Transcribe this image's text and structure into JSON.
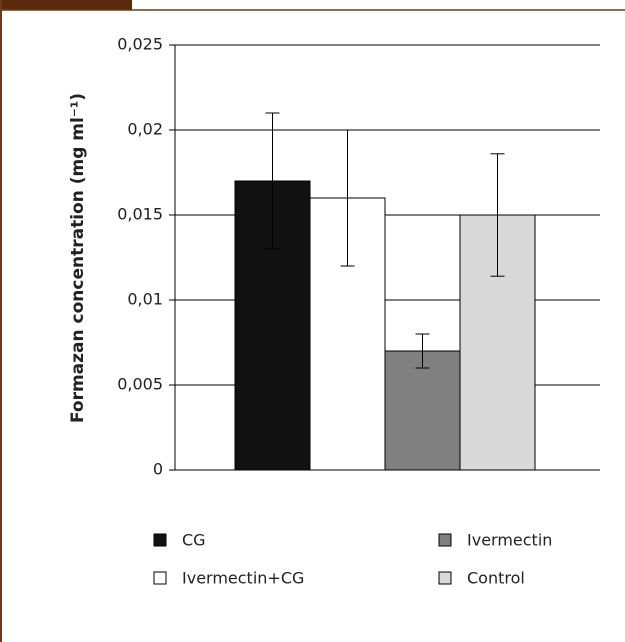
{
  "chart_data": {
    "type": "bar",
    "y_label": "Formazan concentration (mg ml⁻¹)",
    "series": [
      {
        "name": "CG",
        "color": "#111111",
        "values": [
          0.017
        ],
        "errors": [
          0.004
        ]
      },
      {
        "name": "Ivermectin+CG",
        "color": "#ffffff",
        "values": [
          0.016
        ],
        "errors": [
          0.004
        ]
      },
      {
        "name": "Ivermectin",
        "color": "#808080",
        "values": [
          0.007
        ],
        "errors": [
          0.001
        ]
      },
      {
        "name": "Control",
        "color": "#d9d9d9",
        "values": [
          0.015
        ],
        "errors": [
          0.0036
        ]
      }
    ],
    "ylim": [
      0,
      0.025
    ],
    "yticks": [
      0,
      {
        "value": 0.005,
        "label": "0,005"
      },
      {
        "value": 0.01,
        "label": "0,01"
      },
      {
        "value": 0.015,
        "label": "0,015"
      },
      {
        "value": 0.02,
        "label": "0,02"
      },
      {
        "value": 0.025,
        "label": "0,025"
      }
    ],
    "grid": true,
    "legend": "bottom"
  }
}
